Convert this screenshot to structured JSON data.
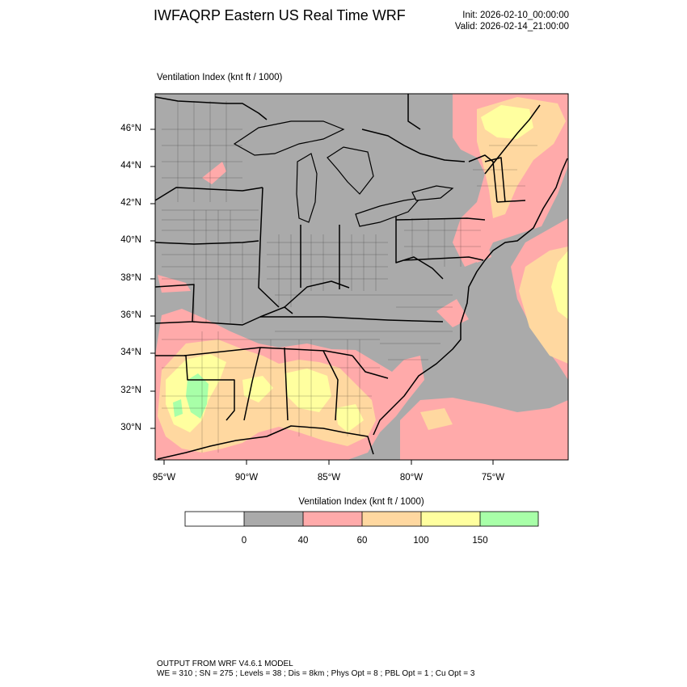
{
  "header": {
    "title": "IWFAQRP Eastern US Real Time WRF",
    "init": "Init: 2026-02-10_00:00:00",
    "valid": "Valid: 2026-02-14_21:00:00"
  },
  "map": {
    "title": "Ventilation Index   (knt ft / 1000)",
    "lat_labels": [
      "46°N",
      "44°N",
      "42°N",
      "40°N",
      "38°N",
      "36°N",
      "34°N",
      "32°N",
      "30°N"
    ],
    "lon_labels": [
      "95°W",
      "90°W",
      "85°W",
      "80°W",
      "75°W"
    ],
    "colors": {
      "land_background": "#aaaaaa",
      "class_40_60": "#ffaaaa",
      "class_60_100": "#ffd8a0",
      "class_100_150": "#ffff9f",
      "class_150_plus": "#a8ffa8",
      "boundaries": "#000000"
    }
  },
  "legend": {
    "title": "Ventilation Index  (knt ft / 1000)",
    "colors": [
      "#ffffff",
      "#aaaaaa",
      "#ffaaaa",
      "#ffd8a0",
      "#ffff9f",
      "#a8ffa8"
    ],
    "ticks": [
      "0",
      "40",
      "60",
      "100",
      "150"
    ]
  },
  "footer": {
    "line1": "OUTPUT FROM WRF V4.6.1 MODEL",
    "line2": "WE = 310 ; SN = 275 ; Levels = 38 ; Dis = 8km ; Phys Opt = 8 ; PBL Opt = 1 ; Cu Opt = 3"
  }
}
